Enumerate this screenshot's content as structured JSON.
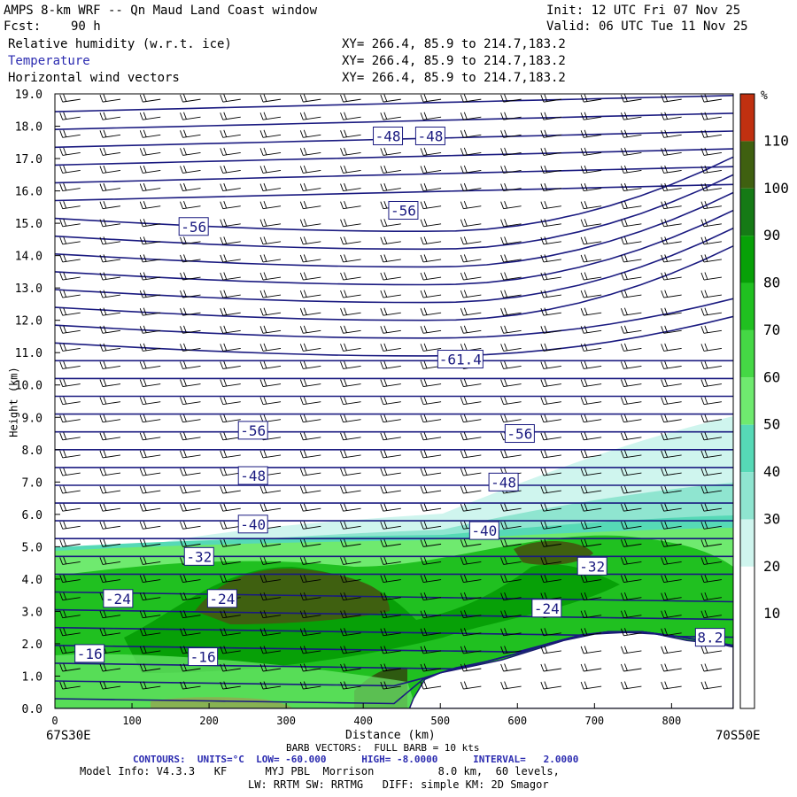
{
  "header": {
    "title": "AMPS 8-km WRF -- Qn Maud Land Coast window",
    "init": "Init: 12 UTC Fri 07 Nov 25",
    "fcst_label": "Fcst:",
    "fcst_value": "90 h",
    "valid": "Valid: 06 UTC Tue 11 Nov 25",
    "fields": [
      {
        "name": "Relative humidity (w.r.t. ice)",
        "xy": "XY= 266.4, 85.9 to 214.7,183.2",
        "color": "#000000"
      },
      {
        "name": "Temperature",
        "xy": "XY= 266.4, 85.9 to 214.7,183.2",
        "color": "#2b2bb0"
      },
      {
        "name": "Horizontal wind vectors",
        "xy": "XY= 266.4, 85.9 to 214.7,183.2",
        "color": "#000000"
      }
    ]
  },
  "chart_data": {
    "type": "cross-section",
    "xlabel": "Distance (km)",
    "ylabel": "Height (km)",
    "xlim": [
      0,
      880
    ],
    "ylim": [
      0,
      19
    ],
    "x_ticks": [
      0,
      100,
      200,
      300,
      400,
      500,
      600,
      700,
      800
    ],
    "y_ticks": [
      "0.0",
      "1.0",
      "2.0",
      "3.0",
      "4.0",
      "5.0",
      "6.0",
      "7.0",
      "8.0",
      "9.0",
      "10.0",
      "11.0",
      "12.0",
      "13.0",
      "14.0",
      "15.0",
      "16.0",
      "17.0",
      "18.0",
      "19.0"
    ],
    "left_endpoint": "67S30E",
    "right_endpoint": "70S50E",
    "colorbar": {
      "unit": "%",
      "levels": [
        10,
        20,
        30,
        40,
        50,
        60,
        70,
        80,
        90,
        100,
        110
      ],
      "colors": [
        "#ffffff",
        "#ffffff",
        "#ffffff",
        "#cff5ee",
        "#8fe5d0",
        "#56d9b6",
        "#6fea6f",
        "#45d845",
        "#20c020",
        "#07a007",
        "#157a15",
        "#3f6010",
        "#c03010"
      ]
    },
    "contour_labels": [
      {
        "text": "-48",
        "x": 432,
        "h": 17.7
      },
      {
        "text": "-48",
        "x": 487,
        "h": 17.7
      },
      {
        "text": "-56",
        "x": 180,
        "h": 14.9
      },
      {
        "text": "-56",
        "x": 452,
        "h": 15.4
      },
      {
        "text": "-61.4",
        "x": 526,
        "h": 10.8
      },
      {
        "text": "-56",
        "x": 257,
        "h": 8.6
      },
      {
        "text": "-56",
        "x": 603,
        "h": 8.5
      },
      {
        "text": "-48",
        "x": 257,
        "h": 7.2
      },
      {
        "text": "-48",
        "x": 582,
        "h": 7.0
      },
      {
        "text": "-40",
        "x": 257,
        "h": 5.7
      },
      {
        "text": "-40",
        "x": 557,
        "h": 5.5
      },
      {
        "text": "-32",
        "x": 187,
        "h": 4.7
      },
      {
        "text": "-32",
        "x": 697,
        "h": 4.4
      },
      {
        "text": "-24",
        "x": 82,
        "h": 3.4
      },
      {
        "text": "-24",
        "x": 217,
        "h": 3.4
      },
      {
        "text": "-24",
        "x": 638,
        "h": 3.1
      },
      {
        "text": "-16",
        "x": 45,
        "h": 1.7
      },
      {
        "text": "-16",
        "x": 192,
        "h": 1.6
      },
      {
        "text": "8.2",
        "x": 850,
        "h": 2.2
      }
    ],
    "terrain": [
      [
        0,
        0
      ],
      [
        460,
        0
      ],
      [
        465,
        0.3
      ],
      [
        480,
        0.9
      ],
      [
        500,
        1.1
      ],
      [
        540,
        1.3
      ],
      [
        580,
        1.5
      ],
      [
        620,
        1.8
      ],
      [
        660,
        2.1
      ],
      [
        700,
        2.3
      ],
      [
        740,
        2.35
      ],
      [
        780,
        2.3
      ],
      [
        820,
        2.1
      ],
      [
        860,
        2.0
      ],
      [
        880,
        1.9
      ]
    ]
  },
  "footer": {
    "barb": "BARB VECTORS:  FULL BARB = 10 kts",
    "contours": "CONTOURS:  UNITS=°C  LOW= -60.000      HIGH= -8.0000      INTERVAL=   2.0000",
    "model_info": "Model Info: V4.3.3   KF      MYJ PBL  Morrison          8.0 km,  60 levels,",
    "physics": "LW: RRTM SW: RRTMG   DIFF: simple KM: 2D Smagor"
  }
}
